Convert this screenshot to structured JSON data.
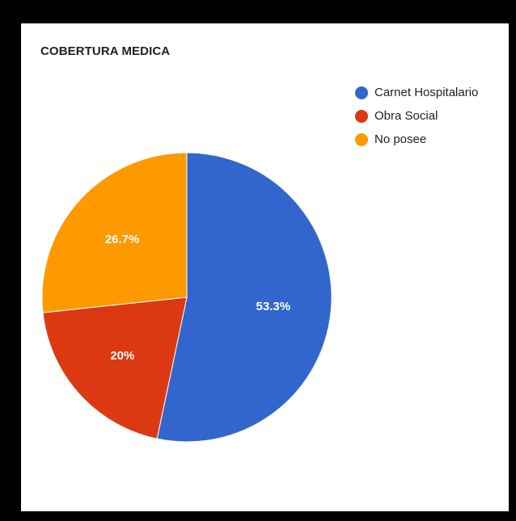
{
  "chart_data": {
    "type": "pie",
    "title": "COBERTURA MEDICA",
    "legend_position": "top-right",
    "slices": [
      {
        "name": "Carnet Hospitalario",
        "value": 53.3,
        "label": "53.3%",
        "color": "#3366cc"
      },
      {
        "name": "Obra Social",
        "value": 20,
        "label": "20%",
        "color": "#dc3912"
      },
      {
        "name": "No posee",
        "value": 26.7,
        "label": "26.7%",
        "color": "#ff9900"
      }
    ]
  }
}
